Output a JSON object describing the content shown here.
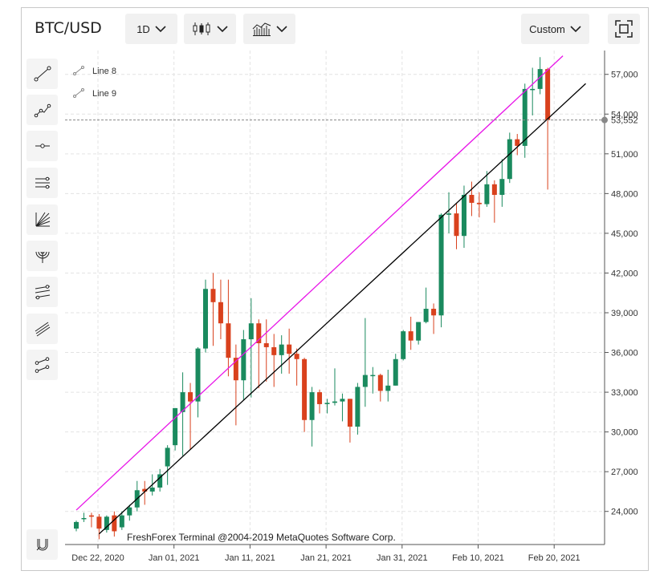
{
  "toolbar": {
    "symbol": "BTC/USD",
    "timeframe": "1D",
    "chart_type_icon": "candles-icon",
    "indicators_icon": "indicators-icon",
    "range_label": "Custom",
    "fullscreen_icon": "fullscreen-icon"
  },
  "sidebar": {
    "tools": [
      "line-icon",
      "polyline-icon",
      "horizontal-line-icon",
      "parallel-channel-icon",
      "fan-icon",
      "arcs-icon",
      "pitchfork-icon",
      "regression-channel-icon",
      "path-icon"
    ],
    "bottom_tool": "magnet-icon"
  },
  "colors": {
    "up": "#1a8a5e",
    "down": "#d9411d",
    "line8": "#e815e8",
    "line9": "#000000",
    "price_line": "#888888"
  },
  "chart_data": {
    "type": "candlestick",
    "title": "",
    "watermark": "FreshForex Terminal @2004-2019 MetaQuotes Software Corp.",
    "legend": [
      "Line 8",
      "Line 9"
    ],
    "y_ticks": [
      "24,000",
      "27,000",
      "30,000",
      "33,000",
      "36,000",
      "39,000",
      "42,000",
      "45,000",
      "48,000",
      "51,000",
      "54,000",
      "57,000"
    ],
    "x_ticks": [
      "Dec 22, 2020",
      "Jan 01, 2021",
      "Jan 11, 2021",
      "Jan 21, 2021",
      "Jan 31, 2021",
      "Feb 10, 2021",
      "Feb 20, 2021"
    ],
    "current_price": "53,552",
    "ylim": [
      21500,
      58800
    ],
    "start_date": "2020-12-22",
    "candles": [
      {
        "d": "Dec 22",
        "o": 22700,
        "h": 23300,
        "l": 22500,
        "c": 23200
      },
      {
        "d": "Dec 23",
        "o": 23500,
        "h": 23900,
        "l": 23200,
        "c": 23500
      },
      {
        "d": "Dec 24",
        "o": 23700,
        "h": 23900,
        "l": 22800,
        "c": 23600
      },
      {
        "d": "Dec 25",
        "o": 23600,
        "h": 23800,
        "l": 21900,
        "c": 22700
      },
      {
        "d": "Dec 26",
        "o": 22600,
        "h": 23700,
        "l": 22400,
        "c": 23600
      },
      {
        "d": "Dec 27",
        "o": 23700,
        "h": 24000,
        "l": 22100,
        "c": 22500
      },
      {
        "d": "Dec 28",
        "o": 22800,
        "h": 24000,
        "l": 22600,
        "c": 23700
      },
      {
        "d": "Dec 29",
        "o": 23700,
        "h": 24500,
        "l": 23300,
        "c": 24300
      },
      {
        "d": "Dec 30",
        "o": 24300,
        "h": 26300,
        "l": 24000,
        "c": 25600
      },
      {
        "d": "Dec 31",
        "o": 25700,
        "h": 26300,
        "l": 24500,
        "c": 25500
      },
      {
        "d": "Jan 01",
        "o": 25500,
        "h": 26800,
        "l": 25200,
        "c": 25800
      },
      {
        "d": "Jan 02",
        "o": 25800,
        "h": 27200,
        "l": 25500,
        "c": 26800
      },
      {
        "d": "Jan 03",
        "o": 27400,
        "h": 29000,
        "l": 26000,
        "c": 28800
      },
      {
        "d": "Jan 04",
        "o": 29000,
        "h": 31800,
        "l": 28600,
        "c": 31800
      },
      {
        "d": "Jan 05",
        "o": 31500,
        "h": 34500,
        "l": 28200,
        "c": 33000
      },
      {
        "d": "Jan 06",
        "o": 33000,
        "h": 33700,
        "l": 28700,
        "c": 32300
      },
      {
        "d": "Jan 07",
        "o": 32300,
        "h": 36400,
        "l": 31100,
        "c": 36300
      },
      {
        "d": "Jan 08",
        "o": 36300,
        "h": 41500,
        "l": 36000,
        "c": 40800
      },
      {
        "d": "Jan 09",
        "o": 40800,
        "h": 42000,
        "l": 36500,
        "c": 39800
      },
      {
        "d": "Jan 10",
        "o": 39800,
        "h": 41500,
        "l": 37000,
        "c": 38200
      },
      {
        "d": "Jan 11",
        "o": 38200,
        "h": 41500,
        "l": 34200,
        "c": 35600
      },
      {
        "d": "Jan 12",
        "o": 35600,
        "h": 36600,
        "l": 30500,
        "c": 33900
      },
      {
        "d": "Jan 13",
        "o": 33900,
        "h": 37700,
        "l": 32400,
        "c": 37000
      },
      {
        "d": "Jan 14",
        "o": 37000,
        "h": 40100,
        "l": 32600,
        "c": 38200
      },
      {
        "d": "Jan 15",
        "o": 38200,
        "h": 38500,
        "l": 33300,
        "c": 36700
      },
      {
        "d": "Jan 16",
        "o": 36700,
        "h": 38500,
        "l": 33800,
        "c": 36400
      },
      {
        "d": "Jan 17",
        "o": 36400,
        "h": 37400,
        "l": 33400,
        "c": 35800
      },
      {
        "d": "Jan 18",
        "o": 35800,
        "h": 37300,
        "l": 34400,
        "c": 36600
      },
      {
        "d": "Jan 19",
        "o": 36600,
        "h": 37800,
        "l": 34400,
        "c": 35900
      },
      {
        "d": "Jan 20",
        "o": 35900,
        "h": 36300,
        "l": 33500,
        "c": 35500
      },
      {
        "d": "Jan 21",
        "o": 35500,
        "h": 35600,
        "l": 30000,
        "c": 30900
      },
      {
        "d": "Jan 22",
        "o": 30900,
        "h": 33400,
        "l": 28900,
        "c": 33000
      },
      {
        "d": "Jan 23",
        "o": 33000,
        "h": 33200,
        "l": 31400,
        "c": 32100
      },
      {
        "d": "Jan 24",
        "o": 32100,
        "h": 32500,
        "l": 31400,
        "c": 32200
      },
      {
        "d": "Jan 25",
        "o": 32200,
        "h": 34800,
        "l": 32000,
        "c": 32300
      },
      {
        "d": "Jan 26",
        "o": 32300,
        "h": 32900,
        "l": 30800,
        "c": 32500
      },
      {
        "d": "Jan 27",
        "o": 32500,
        "h": 32500,
        "l": 29200,
        "c": 30400
      },
      {
        "d": "Jan 28",
        "o": 30400,
        "h": 33700,
        "l": 29800,
        "c": 33400
      },
      {
        "d": "Jan 29",
        "o": 33400,
        "h": 38600,
        "l": 31900,
        "c": 34300
      },
      {
        "d": "Jan 30",
        "o": 34300,
        "h": 34900,
        "l": 32900,
        "c": 34300
      },
      {
        "d": "Jan 31",
        "o": 34300,
        "h": 34400,
        "l": 32300,
        "c": 33100
      },
      {
        "d": "Feb 01",
        "o": 33100,
        "h": 34700,
        "l": 32300,
        "c": 33500
      },
      {
        "d": "Feb 02",
        "o": 33500,
        "h": 35900,
        "l": 33500,
        "c": 35500
      },
      {
        "d": "Feb 03",
        "o": 35500,
        "h": 37700,
        "l": 35400,
        "c": 37600
      },
      {
        "d": "Feb 04",
        "o": 37600,
        "h": 38700,
        "l": 36200,
        "c": 36900
      },
      {
        "d": "Feb 05",
        "o": 36900,
        "h": 38300,
        "l": 36600,
        "c": 38300
      },
      {
        "d": "Feb 06",
        "o": 38300,
        "h": 40900,
        "l": 38200,
        "c": 39300
      },
      {
        "d": "Feb 07",
        "o": 39300,
        "h": 39700,
        "l": 37400,
        "c": 38800
      },
      {
        "d": "Feb 08",
        "o": 38800,
        "h": 46500,
        "l": 37900,
        "c": 46400
      },
      {
        "d": "Feb 09",
        "o": 46400,
        "h": 48100,
        "l": 45000,
        "c": 46500
      },
      {
        "d": "Feb 10",
        "o": 46500,
        "h": 47300,
        "l": 43800,
        "c": 44800
      },
      {
        "d": "Feb 11",
        "o": 44800,
        "h": 48600,
        "l": 43900,
        "c": 47900
      },
      {
        "d": "Feb 12",
        "o": 47900,
        "h": 48900,
        "l": 46300,
        "c": 47300
      },
      {
        "d": "Feb 13",
        "o": 47300,
        "h": 48100,
        "l": 46200,
        "c": 47200
      },
      {
        "d": "Feb 14",
        "o": 47200,
        "h": 49700,
        "l": 47000,
        "c": 48700
      },
      {
        "d": "Feb 15",
        "o": 48700,
        "h": 49000,
        "l": 45800,
        "c": 47900
      },
      {
        "d": "Feb 16",
        "o": 47900,
        "h": 50600,
        "l": 47000,
        "c": 49100
      },
      {
        "d": "Feb 17",
        "o": 49100,
        "h": 52600,
        "l": 48800,
        "c": 52100
      },
      {
        "d": "Feb 18",
        "o": 52100,
        "h": 52500,
        "l": 50900,
        "c": 51600
      },
      {
        "d": "Feb 19",
        "o": 51600,
        "h": 56300,
        "l": 50700,
        "c": 55900
      },
      {
        "d": "Feb 20",
        "o": 55900,
        "h": 57500,
        "l": 53900,
        "c": 55900
      },
      {
        "d": "Feb 21",
        "o": 55900,
        "h": 58300,
        "l": 55500,
        "c": 57400
      },
      {
        "d": "Feb 22",
        "o": 57400,
        "h": 57500,
        "l": 48300,
        "c": 53552
      }
    ],
    "lines": [
      {
        "name": "Line 8",
        "color": "#e815e8",
        "p1": {
          "d": "Dec 22",
          "v": 24100
        },
        "p2": {
          "d": "Feb 24",
          "v": 58400
        }
      },
      {
        "name": "Line 9",
        "color": "#000000",
        "p1": {
          "d": "Dec 25",
          "v": 22300
        },
        "p2": {
          "d": "Feb 27",
          "v": 56300
        }
      }
    ]
  }
}
